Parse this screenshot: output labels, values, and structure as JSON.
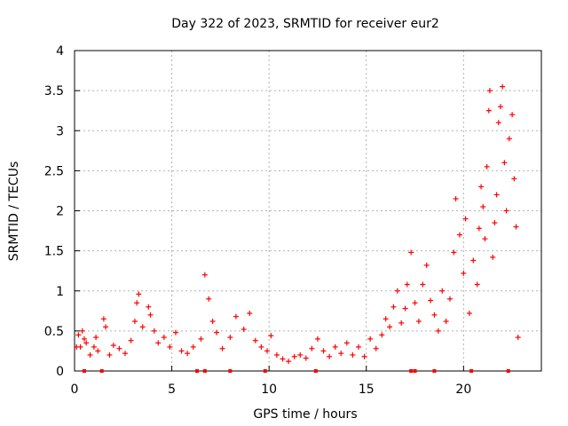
{
  "chart_data": {
    "type": "scatter",
    "title": "Day 322 of 2023, SRMTID for receiver eur2",
    "xlabel": "GPS time / hours",
    "ylabel": "SRMTID / TECUs",
    "xlim": [
      0,
      24
    ],
    "ylim": [
      0,
      4
    ],
    "xticks": [
      0,
      5,
      10,
      15,
      20
    ],
    "yticks": [
      0,
      0.5,
      1,
      1.5,
      2,
      2.5,
      3,
      3.5,
      4
    ],
    "grid": true,
    "marker": "+",
    "colors": {
      "series": "#ff0000",
      "grid": "#b0b0b0",
      "axis": "#000000"
    },
    "series": [
      {
        "name": "SRMTID",
        "points": [
          [
            0.1,
            0.3
          ],
          [
            0.2,
            0.45
          ],
          [
            0.3,
            0.3
          ],
          [
            0.4,
            0.5
          ],
          [
            0.5,
            0.4
          ],
          [
            0.6,
            0.35
          ],
          [
            0.8,
            0.2
          ],
          [
            1.0,
            0.3
          ],
          [
            1.1,
            0.42
          ],
          [
            1.2,
            0.25
          ],
          [
            1.5,
            0.65
          ],
          [
            1.6,
            0.55
          ],
          [
            1.8,
            0.2
          ],
          [
            2.0,
            0.32
          ],
          [
            2.3,
            0.28
          ],
          [
            2.6,
            0.22
          ],
          [
            2.9,
            0.38
          ],
          [
            3.1,
            0.62
          ],
          [
            3.2,
            0.85
          ],
          [
            3.3,
            0.96
          ],
          [
            3.5,
            0.55
          ],
          [
            3.8,
            0.8
          ],
          [
            3.9,
            0.7
          ],
          [
            4.1,
            0.5
          ],
          [
            4.3,
            0.35
          ],
          [
            4.6,
            0.42
          ],
          [
            4.9,
            0.3
          ],
          [
            5.2,
            0.48
          ],
          [
            5.5,
            0.25
          ],
          [
            5.8,
            0.22
          ],
          [
            6.1,
            0.3
          ],
          [
            6.5,
            0.4
          ],
          [
            6.7,
            1.2
          ],
          [
            6.9,
            0.9
          ],
          [
            7.1,
            0.62
          ],
          [
            7.3,
            0.48
          ],
          [
            7.6,
            0.28
          ],
          [
            8.0,
            0.42
          ],
          [
            8.3,
            0.68
          ],
          [
            8.7,
            0.52
          ],
          [
            9.0,
            0.72
          ],
          [
            9.3,
            0.38
          ],
          [
            9.6,
            0.3
          ],
          [
            9.9,
            0.25
          ],
          [
            10.1,
            0.44
          ],
          [
            10.4,
            0.2
          ],
          [
            10.7,
            0.15
          ],
          [
            11.0,
            0.12
          ],
          [
            11.3,
            0.18
          ],
          [
            11.6,
            0.2
          ],
          [
            11.9,
            0.16
          ],
          [
            12.2,
            0.28
          ],
          [
            12.5,
            0.4
          ],
          [
            12.8,
            0.25
          ],
          [
            13.1,
            0.18
          ],
          [
            13.4,
            0.3
          ],
          [
            13.7,
            0.22
          ],
          [
            14.0,
            0.35
          ],
          [
            14.3,
            0.2
          ],
          [
            14.6,
            0.3
          ],
          [
            14.9,
            0.18
          ],
          [
            15.2,
            0.4
          ],
          [
            15.5,
            0.28
          ],
          [
            15.8,
            0.45
          ],
          [
            16.0,
            0.65
          ],
          [
            16.2,
            0.55
          ],
          [
            16.4,
            0.8
          ],
          [
            16.6,
            1.0
          ],
          [
            16.8,
            0.6
          ],
          [
            17.0,
            0.78
          ],
          [
            17.1,
            1.08
          ],
          [
            17.3,
            1.48
          ],
          [
            17.5,
            0.85
          ],
          [
            17.7,
            0.62
          ],
          [
            17.9,
            1.08
          ],
          [
            18.1,
            1.32
          ],
          [
            18.3,
            0.88
          ],
          [
            18.5,
            0.7
          ],
          [
            18.7,
            0.5
          ],
          [
            18.9,
            1.0
          ],
          [
            19.1,
            0.62
          ],
          [
            19.3,
            0.9
          ],
          [
            19.5,
            1.48
          ],
          [
            19.6,
            2.15
          ],
          [
            19.8,
            1.7
          ],
          [
            20.0,
            1.22
          ],
          [
            20.1,
            1.9
          ],
          [
            20.3,
            0.72
          ],
          [
            20.5,
            1.38
          ],
          [
            20.7,
            1.08
          ],
          [
            20.8,
            1.78
          ],
          [
            20.9,
            2.3
          ],
          [
            21.0,
            2.05
          ],
          [
            21.1,
            1.65
          ],
          [
            21.2,
            2.55
          ],
          [
            21.3,
            3.25
          ],
          [
            21.35,
            3.5
          ],
          [
            21.5,
            1.42
          ],
          [
            21.6,
            1.85
          ],
          [
            21.7,
            2.2
          ],
          [
            21.8,
            3.1
          ],
          [
            21.9,
            3.3
          ],
          [
            22.0,
            3.55
          ],
          [
            22.1,
            2.6
          ],
          [
            22.2,
            2.0
          ],
          [
            22.35,
            2.9
          ],
          [
            22.5,
            3.2
          ],
          [
            22.6,
            2.4
          ],
          [
            22.7,
            1.8
          ],
          [
            22.8,
            0.42
          ]
        ]
      }
    ],
    "baseline_markers": [
      0.5,
      1.4,
      6.3,
      6.7,
      8.0,
      9.8,
      12.4,
      17.3,
      17.5,
      18.5,
      20.4,
      22.3
    ]
  }
}
